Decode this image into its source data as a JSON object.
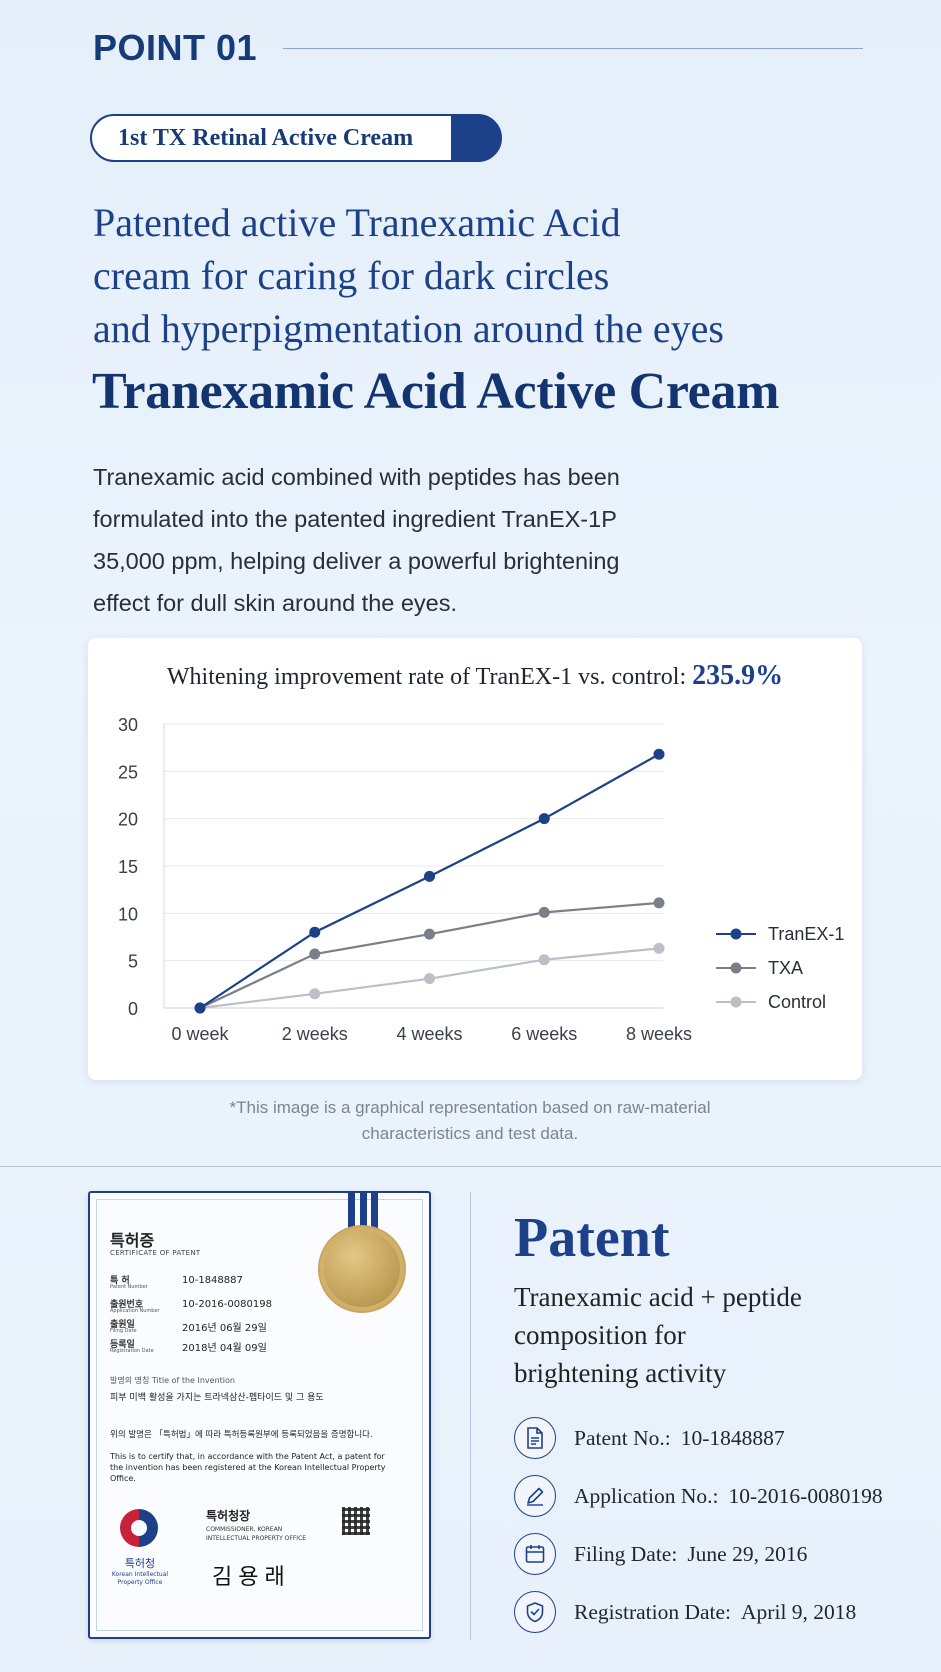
{
  "header": {
    "point_label": "POINT 01",
    "pill_label": "1st TX Retinal Active Cream"
  },
  "intro": {
    "headline_lines": [
      "Patented active Tranexamic Acid",
      "cream for caring for dark circles",
      "and hyperpigmentation around the eyes"
    ],
    "product_name": "Tranexamic Acid Active Cream",
    "description_lines": [
      "Tranexamic acid combined with peptides has been",
      "formulated into the patented ingredient TranEX-1P",
      "35,000 ppm, helping deliver a powerful brightening",
      "effect for dull skin around the eyes."
    ]
  },
  "chart_data": {
    "type": "line",
    "title": "Whitening improvement rate of TranEX-1 vs. control:",
    "title_highlight": "235.9%",
    "categories": [
      "0 week",
      "2 weeks",
      "4 weeks",
      "6 weeks",
      "8 weeks"
    ],
    "ylim": [
      0,
      30
    ],
    "yticks": [
      "0",
      "5",
      "10",
      "15",
      "20",
      "25",
      "30"
    ],
    "grid": true,
    "legend_position": "right",
    "series": [
      {
        "name": "TranEX-1",
        "values": [
          0,
          8,
          13.9,
          20,
          26.8
        ],
        "color": "#1d4189"
      },
      {
        "name": "TXA",
        "values": [
          0,
          5.7,
          7.8,
          10.1,
          11.1
        ],
        "color": "#7a7f88"
      },
      {
        "name": "Control",
        "values": [
          0,
          1.5,
          3.1,
          5.1,
          6.3
        ],
        "color": "#bcc0c6"
      }
    ]
  },
  "footnote_lines": [
    "*This image is a graphical representation based on raw-material",
    "characteristics and test data."
  ],
  "certificate": {
    "title_kr": "특허증",
    "title_en": "CERTIFICATE OF PATENT",
    "rows": [
      {
        "label_kr": "특 허",
        "label_en": "Patent Number",
        "value": "10-1848887"
      },
      {
        "label_kr": "출원번호",
        "label_en": "Application Number",
        "value": "10-2016-0080198"
      },
      {
        "label_kr": "출원일",
        "label_en": "Filing Date",
        "value": "2016년 06월 29일"
      },
      {
        "label_kr": "등록일",
        "label_en": "Registration Date",
        "value": "2018년 04월 09일"
      }
    ],
    "invention_label": "발명의 명칭 Title of the Invention",
    "invention_title": "피부 미백 활성을 가지는 트라넥삼산-펩타이드 및 그 용도",
    "statement_kr": "위의 발명은 「특허법」에 따라 특허등록원부에 등록되었음을 증명합니다.",
    "statement_en": "This is to certify that, in accordance with the Patent Act, a patent for the invention has been registered at the Korean Intellectual Property Office.",
    "office_kr": "특허청",
    "office_en": "Korean Intellectual Property Office",
    "commissioner_kr": "특허청장",
    "commissioner_en": "COMMISSIONER, KOREAN INTELLECTUAL PROPERTY OFFICE",
    "signature": "김용래"
  },
  "patent": {
    "title": "Patent",
    "subtitle_lines": [
      "Tranexamic acid + peptide",
      "composition for",
      "brightening activity"
    ],
    "items": [
      {
        "icon": "document-icon",
        "label": "Patent No.:",
        "value": "10-1848887"
      },
      {
        "icon": "pen-icon",
        "label": "Application No.:",
        "value": "10-2016-0080198"
      },
      {
        "icon": "calendar-icon",
        "label": "Filing Date:",
        "value": "June 29, 2016"
      },
      {
        "icon": "shield-check-icon",
        "label": "Registration Date:",
        "value": "April 9, 2018"
      }
    ]
  }
}
